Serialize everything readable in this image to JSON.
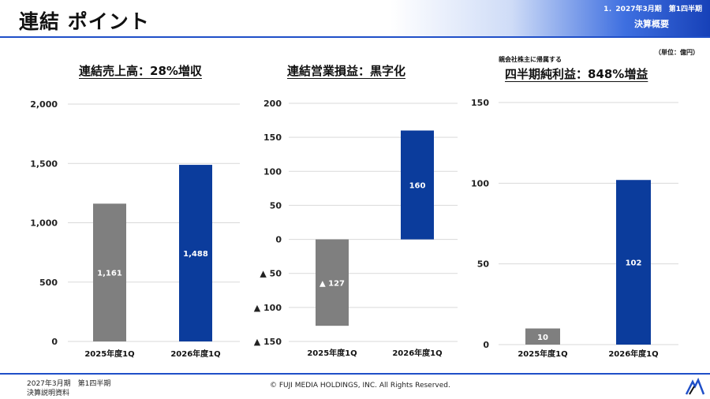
{
  "header": {
    "title": "連結 ポイント",
    "period": "1．2027年3月期　第1四半期",
    "section": "決算概要"
  },
  "unit_note": "（単位：億円）",
  "panels": [
    {
      "title": "連結売上高：28%増収",
      "subtitle": ""
    },
    {
      "title": "連結営業損益：黒字化",
      "subtitle": ""
    },
    {
      "title": "四半期純利益：848%増益",
      "subtitle": "親会社株主に帰属する"
    }
  ],
  "colors": {
    "prev_bar": "#7f7f7f",
    "curr_bar": "#0b3c9c",
    "grid": "#d9d9d9",
    "accent": "#1f4fc8"
  },
  "chart_data": [
    {
      "type": "bar",
      "title": "連結売上高：28%増収",
      "categories": [
        "2025年度1Q",
        "2026年度1Q"
      ],
      "values": [
        1161,
        1488
      ],
      "data_labels": [
        "1,161",
        "1,488"
      ],
      "ylim": [
        0,
        2000
      ],
      "yticks": [
        0,
        500,
        1000,
        1500,
        2000
      ],
      "ytick_labels": [
        "0",
        "500",
        "1,000",
        "1,500",
        "2,000"
      ],
      "grid": true
    },
    {
      "type": "bar",
      "title": "連結営業損益：黒字化",
      "categories": [
        "2025年度1Q",
        "2026年度1Q"
      ],
      "values": [
        -127,
        160
      ],
      "data_labels": [
        "▲ 127",
        "160"
      ],
      "ylim": [
        -150,
        200
      ],
      "yticks": [
        -150,
        -100,
        -50,
        0,
        50,
        100,
        150,
        200
      ],
      "ytick_labels": [
        "▲ 150",
        "▲ 100",
        "▲ 50",
        "0",
        "50",
        "100",
        "150",
        "200"
      ],
      "grid": true
    },
    {
      "type": "bar",
      "title": "四半期純利益：848%増益",
      "subtitle": "親会社株主に帰属する",
      "categories": [
        "2025年度1Q",
        "2026年度1Q"
      ],
      "values": [
        10,
        102
      ],
      "data_labels": [
        "10",
        "102"
      ],
      "ylim": [
        0,
        150
      ],
      "yticks": [
        0,
        50,
        100,
        150
      ],
      "ytick_labels": [
        "0",
        "50",
        "100",
        "150"
      ],
      "grid": true
    }
  ],
  "footer": {
    "period": "2027年3月期　第1四半期",
    "doc": "決算説明資料",
    "copyright": "© FUJI MEDIA HOLDINGS, INC. All Rights Reserved."
  },
  "logo_icon": "tech-logo-icon"
}
